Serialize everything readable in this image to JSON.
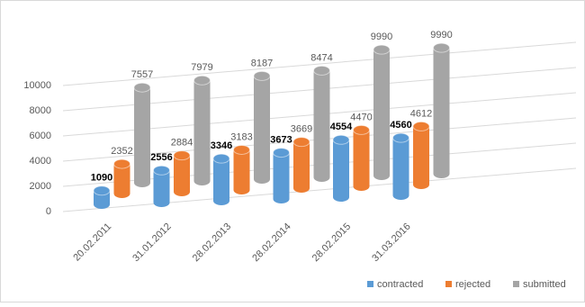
{
  "chart_data": {
    "type": "bar3d",
    "categories": [
      "20.02.2011",
      "31.01.2012",
      "28.02.2013",
      "28.02.2014",
      "28.02.2015",
      "31.03.2016"
    ],
    "series": [
      {
        "name": "contracted",
        "color": "#5b9bd5",
        "values": [
          1090,
          2556,
          3346,
          3673,
          4554,
          4560
        ]
      },
      {
        "name": "rejected",
        "color": "#ed7d31",
        "values": [
          2352,
          2884,
          3183,
          3669,
          4470,
          4612
        ]
      },
      {
        "name": "submitted",
        "color": "#a5a5a5",
        "values": [
          7557,
          7979,
          8187,
          8474,
          9990,
          9990
        ]
      }
    ],
    "ylim": [
      0,
      10000
    ],
    "yticks": [
      0,
      2000,
      4000,
      6000,
      8000,
      10000
    ],
    "grid": true,
    "legend": "bottom-right"
  }
}
